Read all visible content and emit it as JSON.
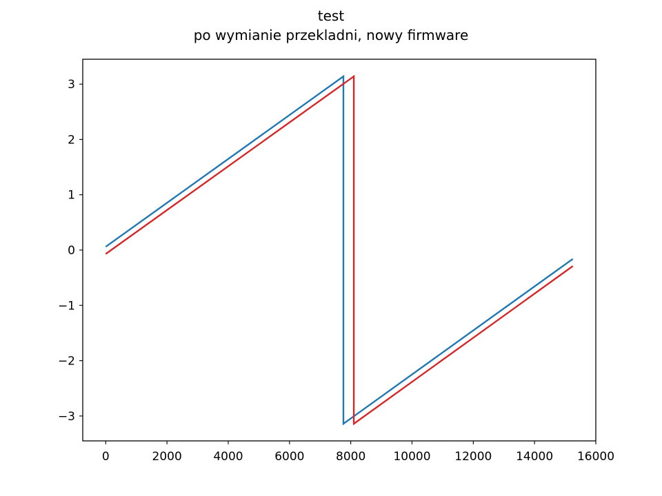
{
  "chart_data": {
    "type": "line",
    "title": "test",
    "subtitle": "po wymianie przekladni, nowy firmware",
    "xlabel": "",
    "ylabel": "",
    "xlim": [
      -750,
      16000
    ],
    "ylim": [
      -3.45,
      3.45
    ],
    "xticks": [
      0,
      2000,
      4000,
      6000,
      8000,
      10000,
      12000,
      14000,
      16000
    ],
    "xtick_labels": [
      "0",
      "2000",
      "4000",
      "6000",
      "8000",
      "10000",
      "12000",
      "14000",
      "16000"
    ],
    "yticks": [
      -3,
      -2,
      -1,
      0,
      1,
      2,
      3
    ],
    "ytick_labels": [
      "−3",
      "−2",
      "−1",
      "0",
      "1",
      "2",
      "3"
    ],
    "grid": false,
    "series": [
      {
        "color": "#1f77b4",
        "points": [
          [
            0,
            0.06
          ],
          [
            7760,
            3.14
          ],
          [
            7760,
            -3.14
          ],
          [
            15250,
            -0.16
          ]
        ]
      },
      {
        "color": "#d62728",
        "points": [
          [
            0,
            -0.07
          ],
          [
            8100,
            3.14
          ],
          [
            8100,
            -3.14
          ],
          [
            15250,
            -0.29
          ]
        ]
      }
    ]
  }
}
